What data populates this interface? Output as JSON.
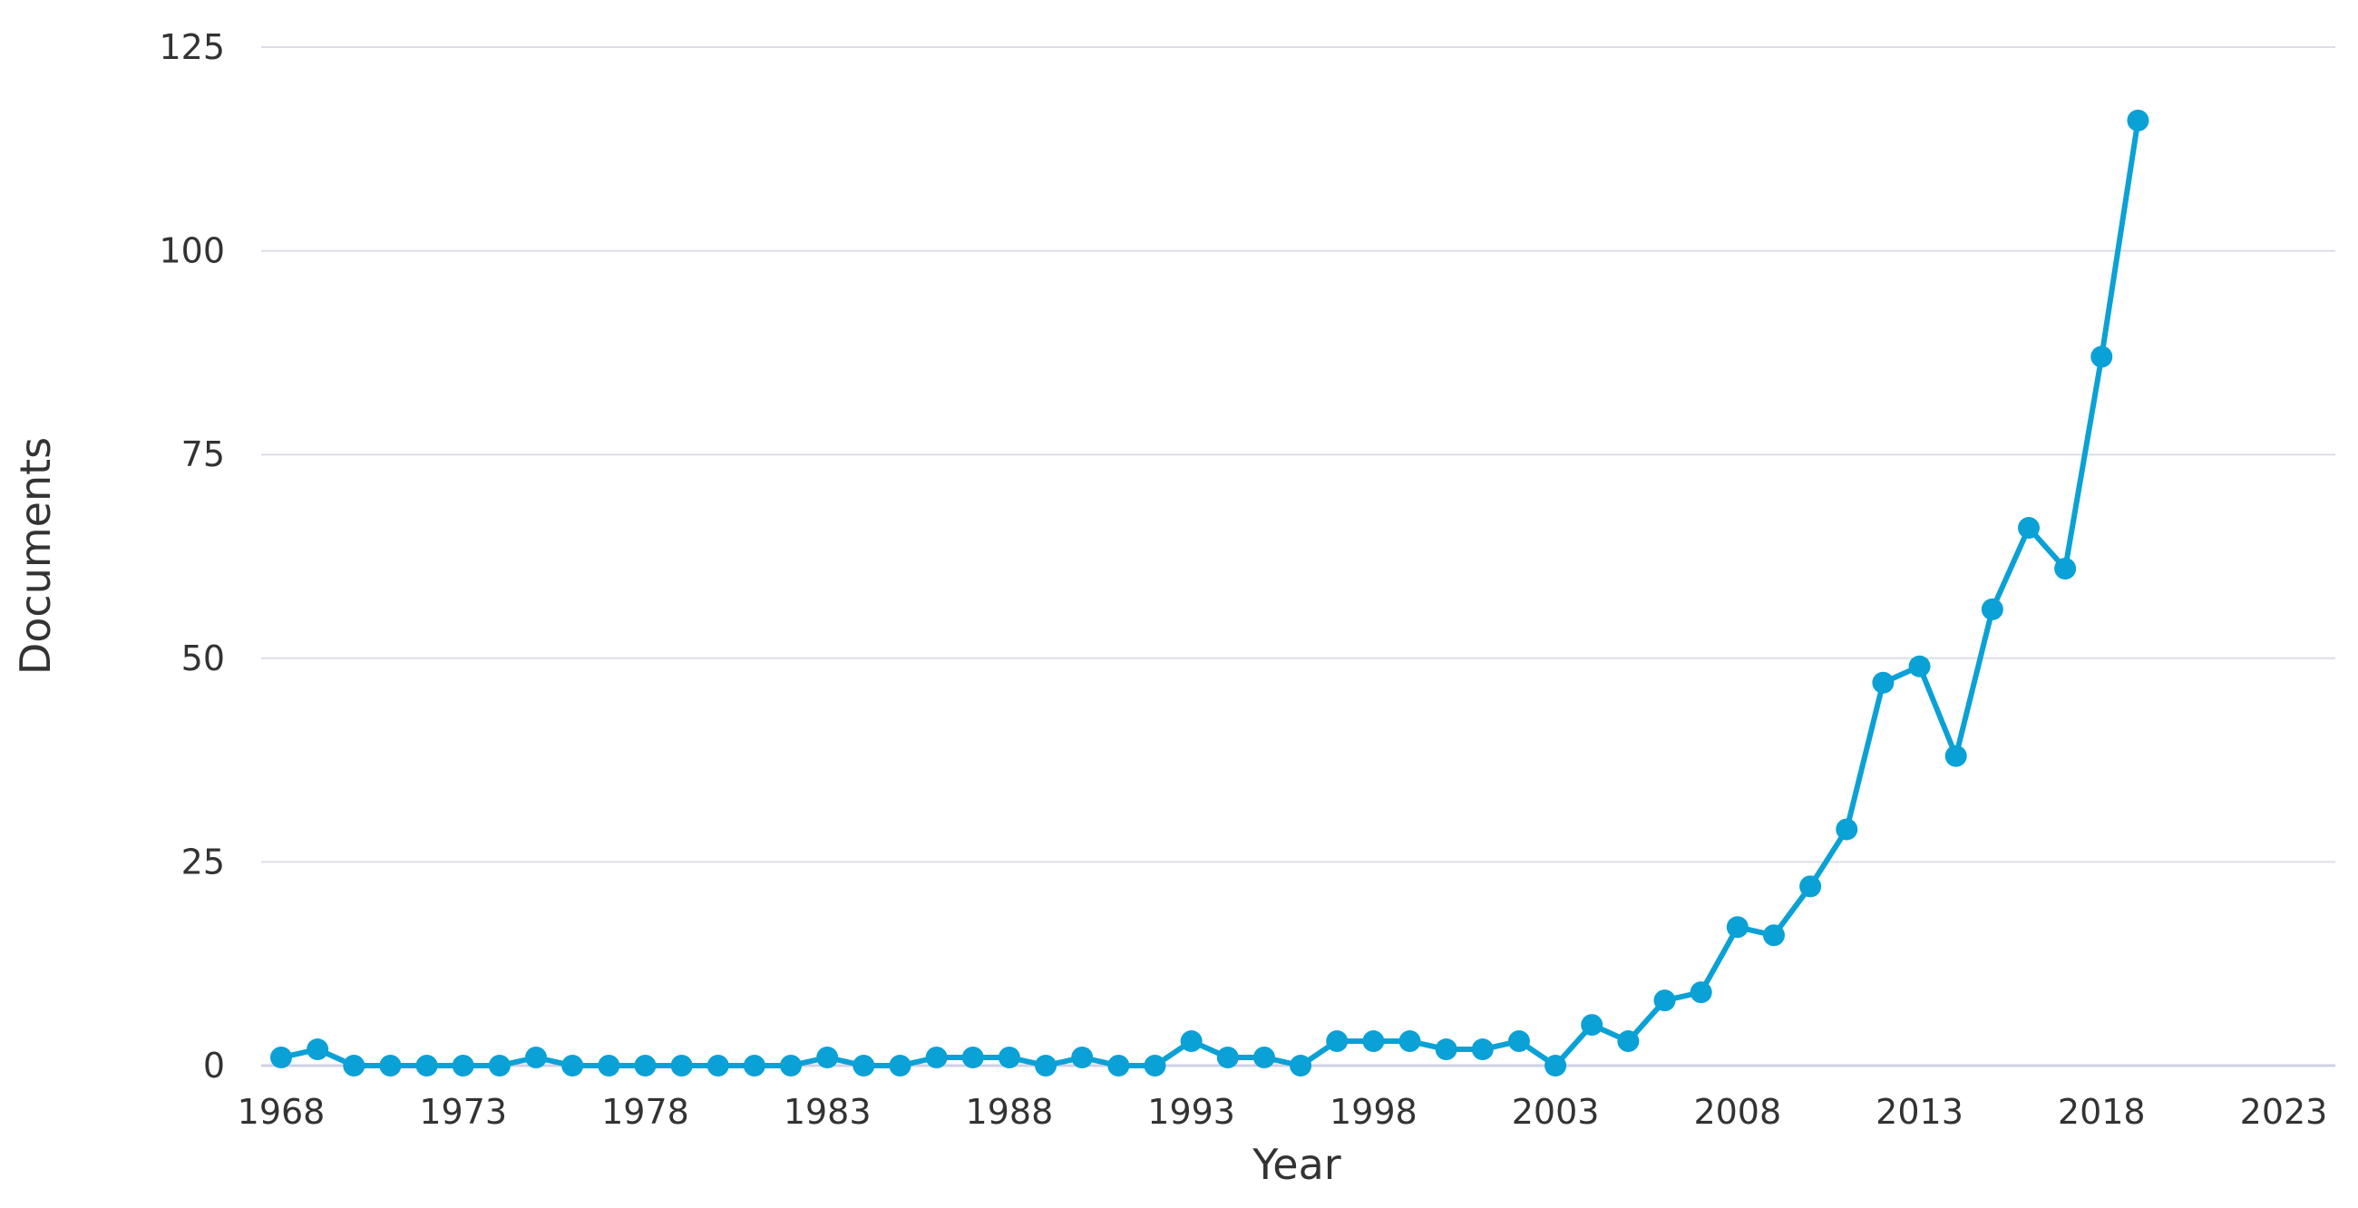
{
  "chart_data": {
    "type": "line",
    "title": "",
    "xlabel": "Year",
    "ylabel": "Documents",
    "xlim": [
      1968,
      2023
    ],
    "ylim": [
      0,
      125
    ],
    "xticks": [
      "1968",
      "1973",
      "1978",
      "1983",
      "1988",
      "1993",
      "1998",
      "2003",
      "2008",
      "2013",
      "2018",
      "2023"
    ],
    "yticks": [
      "0",
      "25",
      "50",
      "75",
      "100",
      "125"
    ],
    "grid": true,
    "legend": "none",
    "colors": {
      "series": "#0aa1d6",
      "grid": "#dddde8",
      "baseline": "#cfd0e6",
      "text": "#333333"
    },
    "series": [
      {
        "x": [
          1968,
          1969,
          1970,
          1971,
          1972,
          1973,
          1974,
          1975,
          1976,
          1977,
          1978,
          1979,
          1980,
          1981,
          1982,
          1983,
          1984,
          1985,
          1986,
          1987,
          1988,
          1989,
          1990,
          1991,
          1992,
          1993,
          1994,
          1995,
          1996,
          1997,
          1998,
          1999,
          2000,
          2001,
          2002,
          2003,
          2004,
          2005,
          2006,
          2007,
          2008,
          2009,
          2010,
          2011,
          2012,
          2013,
          2014,
          2015,
          2016,
          2017,
          2018,
          2019
        ],
        "values": [
          1,
          2,
          0,
          0,
          0,
          0,
          0,
          1,
          0,
          0,
          0,
          0,
          0,
          0,
          0,
          1,
          0,
          0,
          1,
          1,
          1,
          0,
          1,
          0,
          0,
          3,
          1,
          1,
          0,
          3,
          3,
          3,
          2,
          2,
          3,
          0,
          5,
          3,
          8,
          9,
          17,
          16,
          22,
          29,
          47,
          49,
          38,
          56,
          66,
          61,
          87,
          116
        ]
      }
    ]
  }
}
